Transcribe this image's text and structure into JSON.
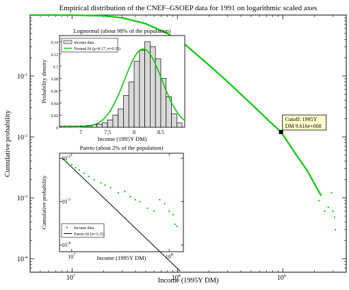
{
  "chart_data": [
    {
      "type": "scatter",
      "title": "Empirical distribution of the CNEF–GSOEP data for 1991 on logarithmic scaled axes",
      "xlabel": "Income (1995Y DM)",
      "ylabel": "Cumulative probability",
      "xscale": "log",
      "yscale": "log",
      "xlim": [
        4000000,
        4000000000
      ],
      "ylim": [
        6e-05,
        1
      ],
      "x_ticks": [
        "10^7",
        "10^8",
        "10^9"
      ],
      "y_ticks": [
        "10^-4",
        "10^-3",
        "10^-2",
        "10^-1"
      ],
      "series": [
        {
          "name": "",
          "color": "#00cc00",
          "x": [
            4000000,
            7000000,
            10000000,
            20000000,
            30000000,
            50000000,
            80000000,
            120000000,
            200000000,
            300000000,
            500000000,
            700000000,
            962000000,
            1300000000,
            1700000000,
            2000000000,
            2300000000
          ],
          "y": [
            1,
            0.999,
            0.996,
            0.97,
            0.9,
            0.72,
            0.5,
            0.32,
            0.15,
            0.08,
            0.035,
            0.02,
            0.012,
            0.0055,
            0.0028,
            0.0017,
            0.0011
          ]
        },
        {
          "name": "",
          "color": "#00cc00",
          "x": [
            2200000000,
            2500000000,
            2700000000,
            2900000000,
            3000000000,
            3100000000,
            3150000000
          ],
          "y": [
            0.0009,
            0.0006,
            0.0007,
            0.0012,
            0.0006,
            0.00048,
            0.0003
          ]
        }
      ],
      "annotation": {
        "point": {
          "x": 962000000,
          "y": 0.012
        },
        "lines": [
          "Cutoff: 1995Y",
          "DM 9.616e+008"
        ],
        "box_color": "#ffffcc"
      }
    },
    {
      "type": "bar",
      "title": "Lognormal (about 98% of the population)",
      "xlabel": "Income (1995Y DM)",
      "ylabel": "Probability density",
      "xlim": [
        6.6,
        8.95
      ],
      "ylim": [
        0,
        0.15
      ],
      "x_ticks": [
        "7",
        "7.5",
        "8",
        "8.5"
      ],
      "y_ticks": [
        "0",
        "0.02",
        "0.04",
        "0.06",
        "0.08",
        "0.1",
        "0.12",
        "0.14"
      ],
      "bins": {
        "edges": [
          6.6,
          6.7,
          6.8,
          6.9,
          7.0,
          7.1,
          7.2,
          7.3,
          7.4,
          7.5,
          7.6,
          7.7,
          7.8,
          7.9,
          8.0,
          8.1,
          8.2,
          8.3,
          8.4,
          8.5,
          8.6,
          8.7,
          8.8,
          8.9
        ],
        "values": [
          0.002,
          0.002,
          0.002,
          0.002,
          0.002,
          0.003,
          0.004,
          0.005,
          0.007,
          0.012,
          0.02,
          0.03,
          0.052,
          0.074,
          0.108,
          0.126,
          0.14,
          0.132,
          0.112,
          0.08,
          0.05,
          0.022,
          0.007
        ]
      },
      "fit": {
        "mu": 8.17,
        "sigma": 0.35,
        "scale": 0.128
      },
      "legend": {
        "placement": "top-left",
        "entries": [
          "Income data",
          "Normal fit (μ=8.17, σ=0.35)"
        ]
      },
      "bar_color": "#d9d9d9",
      "fit_color": "#00cc00"
    },
    {
      "type": "scatter",
      "title": "Pareto (about 2% of the population)",
      "xlabel": "Income (1995Y DM)",
      "ylabel": "Cumulative probability",
      "xscale": "log",
      "yscale": "log",
      "xlim": [
        7500000,
        140000000
      ],
      "ylim": [
        7e-05,
        0.013
      ],
      "x_ticks": [
        "10^7",
        "10^8"
      ],
      "y_ticks": [
        "10^-4",
        "10^-3",
        "10^-2"
      ],
      "series": [
        {
          "name": "Income data",
          "color": "#00cc00",
          "x": [
            8000000,
            8500000,
            9000000,
            10000000,
            11000000,
            12000000,
            13500000,
            15000000,
            17000000,
            20000000,
            22000000,
            25000000,
            30000000,
            35000000,
            40000000,
            45000000,
            50000000,
            60000000,
            70000000,
            80000000,
            90000000,
            100000000,
            110000000,
            115000000,
            120000000
          ],
          "y": [
            0.01,
            0.009,
            0.008,
            0.007,
            0.006,
            0.0053,
            0.0045,
            0.0038,
            0.0032,
            0.0027,
            0.0024,
            0.0021,
            0.0016,
            0.0017,
            0.0013,
            0.0011,
            0.001,
            0.0007,
            0.0006,
            0.0011,
            0.0009,
            0.0006,
            0.0005,
            0.0003,
            0.00027
          ]
        }
      ],
      "fit": {
        "name": "Pareto fit (α=3.15)",
        "alpha": 3.15,
        "x0": 8000000,
        "y0": 0.01,
        "x1": 130000000,
        "color": "#000000"
      },
      "legend": {
        "placement": "bottom-left",
        "entries": [
          "Income data",
          "Pareto fit (α=3.15)"
        ]
      }
    }
  ]
}
